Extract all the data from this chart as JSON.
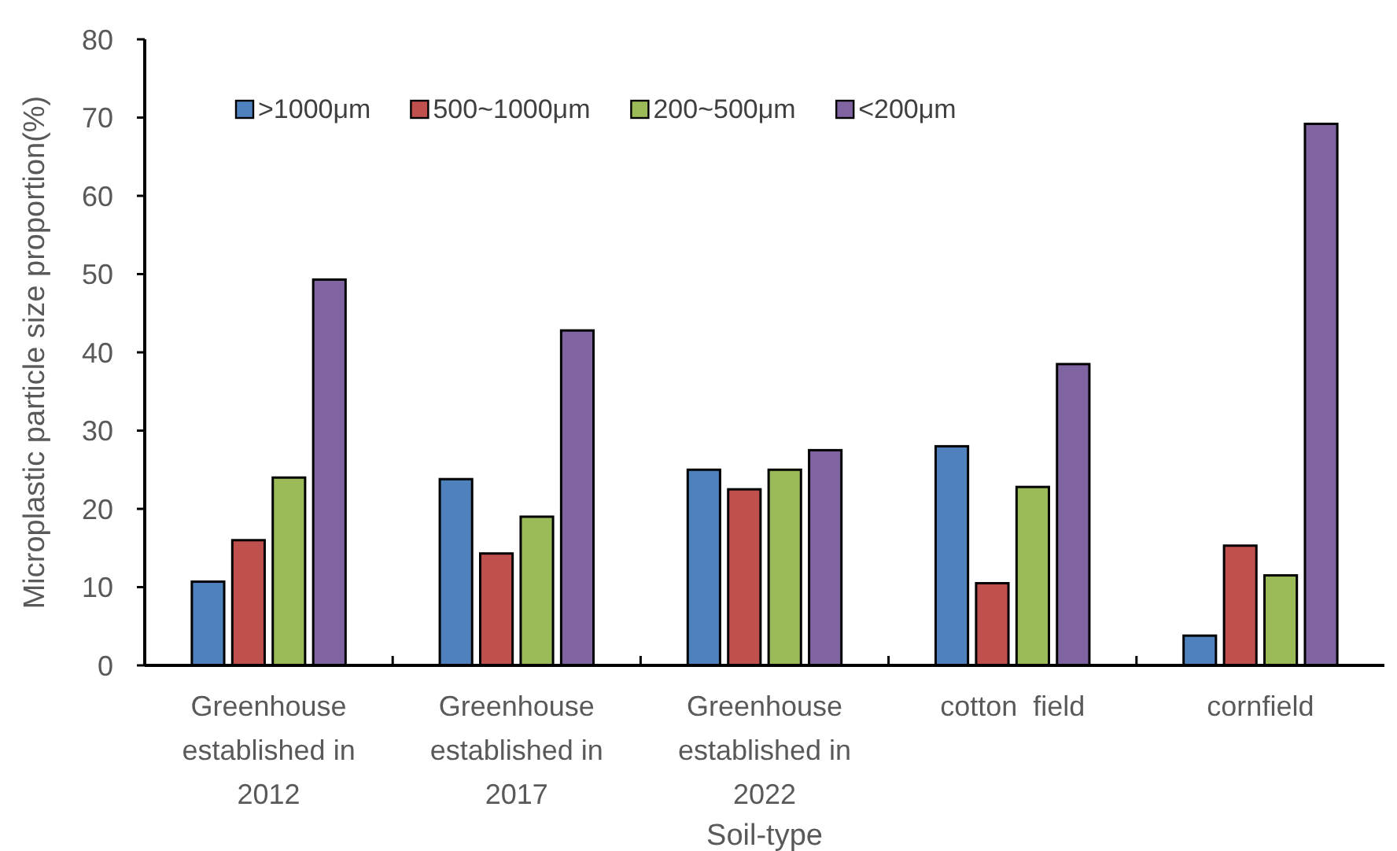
{
  "chart_data": {
    "type": "bar",
    "xlabel": "Soil-type",
    "ylabel": "Microplastic particle size proportion(%)",
    "categories": [
      "Greenhouse established in 2012",
      "Greenhouse established in 2017",
      "Greenhouse established in 2022",
      "cotton  field",
      "cornfield"
    ],
    "series": [
      {
        "name": ">1000μm",
        "color": "#4f81bd",
        "values": [
          10.7,
          23.8,
          25,
          28,
          3.8
        ]
      },
      {
        "name": "500~1000μm",
        "color": "#c0504d",
        "values": [
          16,
          14.3,
          22.5,
          10.5,
          15.3
        ]
      },
      {
        "name": "200~500μm",
        "color": "#9bbb59",
        "values": [
          24,
          19,
          25,
          22.8,
          11.5
        ]
      },
      {
        "name": "<200μm",
        "color": "#8064a2",
        "values": [
          49.3,
          42.8,
          27.5,
          38.5,
          69.2
        ]
      }
    ],
    "ylim": [
      0,
      80
    ],
    "yticks": [
      0,
      10,
      20,
      30,
      40,
      50,
      60,
      70,
      80
    ],
    "grid": false,
    "legend": "top"
  }
}
